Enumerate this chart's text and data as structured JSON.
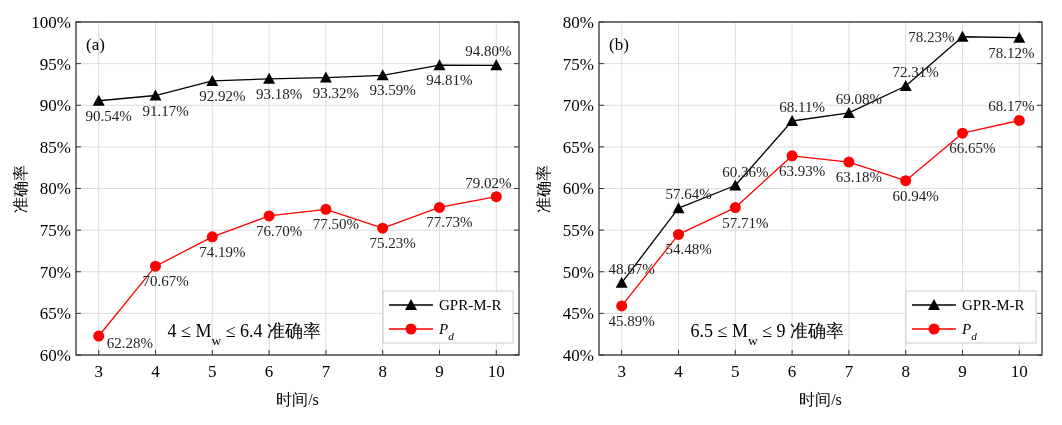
{
  "chart_data": [
    {
      "type": "line",
      "xlabel": "时间/s",
      "ylabel": "准确率",
      "x": [
        3,
        4,
        5,
        6,
        7,
        8,
        9,
        10
      ],
      "xlim": [
        2.6,
        10.4
      ],
      "xticks": [
        3,
        4,
        5,
        6,
        7,
        8,
        9,
        10
      ],
      "ylim": [
        60,
        100
      ],
      "yticks": [
        {
          "value": 60,
          "label": "60%"
        },
        {
          "value": 65,
          "label": "65%"
        },
        {
          "value": 70,
          "label": "70%"
        },
        {
          "value": 75,
          "label": "75%"
        },
        {
          "value": 80,
          "label": "80%"
        },
        {
          "value": 85,
          "label": "85%"
        },
        {
          "value": 90,
          "label": "90%"
        },
        {
          "value": 95,
          "label": "95%"
        },
        {
          "value": 100,
          "label": "100%"
        }
      ],
      "grid": true,
      "legend": "bottom right",
      "annotations": [
        "(a)",
        "4 ≤ M$_{w}$ ≤ 6.4  准确率"
      ],
      "series": [
        {
          "name": "GPR-M-R",
          "color": "#000000",
          "marker": "triangle",
          "values": [
            90.54,
            91.17,
            92.92,
            93.18,
            93.32,
            93.59,
            94.81,
            94.8
          ],
          "value_labels": [
            "90.54%",
            "91.17%",
            "92.92%",
            "93.18%",
            "93.32%",
            "93.59%",
            "94.81%",
            "94.80%"
          ]
        },
        {
          "name": "P$_{d}$",
          "color": "#ff0000",
          "marker": "circle",
          "values": [
            62.28,
            70.67,
            74.19,
            76.7,
            77.5,
            75.23,
            77.73,
            79.02
          ],
          "value_labels": [
            "62.28%",
            "70.67%",
            "74.19%",
            "76.70%",
            "77.50%",
            "75.23%",
            "77.73%",
            "79.02%"
          ]
        }
      ]
    },
    {
      "type": "line",
      "xlabel": "时间/s",
      "ylabel": "准确率",
      "x": [
        3,
        4,
        5,
        6,
        7,
        8,
        9,
        10
      ],
      "xlim": [
        2.6,
        10.4
      ],
      "xticks": [
        3,
        4,
        5,
        6,
        7,
        8,
        9,
        10
      ],
      "ylim": [
        40,
        80
      ],
      "yticks": [
        {
          "value": 40,
          "label": "40%"
        },
        {
          "value": 45,
          "label": "45%"
        },
        {
          "value": 50,
          "label": "50%"
        },
        {
          "value": 55,
          "label": "55%"
        },
        {
          "value": 60,
          "label": "60%"
        },
        {
          "value": 65,
          "label": "65%"
        },
        {
          "value": 70,
          "label": "70%"
        },
        {
          "value": 75,
          "label": "75%"
        },
        {
          "value": 80,
          "label": "80%"
        }
      ],
      "grid": true,
      "legend": "bottom right",
      "annotations": [
        "(b)",
        "6.5 ≤ M$_{w}$ ≤ 9  准确率"
      ],
      "series": [
        {
          "name": "GPR-M-R",
          "color": "#000000",
          "marker": "triangle",
          "values": [
            48.67,
            57.64,
            60.36,
            68.11,
            69.08,
            72.31,
            78.23,
            78.12
          ],
          "value_labels": [
            "48.67%",
            "57.64%",
            "60.36%",
            "68.11%",
            "69.08%",
            "72.31%",
            "78.23%",
            "78.12%"
          ]
        },
        {
          "name": "P$_{d}$",
          "color": "#ff0000",
          "marker": "circle",
          "values": [
            45.89,
            54.48,
            57.71,
            63.93,
            63.18,
            60.94,
            66.65,
            68.17
          ],
          "value_labels": [
            "45.89%",
            "54.48%",
            "57.71%",
            "63.93%",
            "63.18%",
            "60.94%",
            "66.65%",
            "68.17%"
          ]
        }
      ]
    }
  ]
}
